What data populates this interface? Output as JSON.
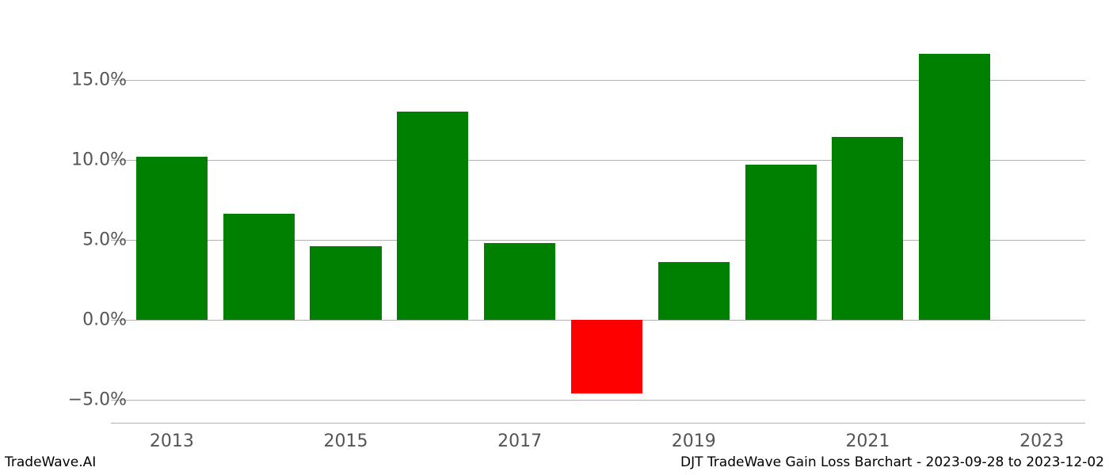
{
  "chart": {
    "type": "bar",
    "years": [
      2013,
      2014,
      2015,
      2016,
      2017,
      2018,
      2019,
      2020,
      2021,
      2022
    ],
    "values": [
      10.2,
      6.6,
      4.6,
      13.0,
      4.8,
      -4.6,
      3.6,
      9.7,
      11.4,
      16.6
    ],
    "bar_colors": [
      "#008000",
      "#008000",
      "#008000",
      "#008000",
      "#008000",
      "#ff0000",
      "#008000",
      "#008000",
      "#008000",
      "#008000"
    ],
    "positive_color": "#008000",
    "negative_color": "#ff0000",
    "background_color": "#ffffff",
    "grid_color": "#b0b0b0",
    "yticks": [
      -5.0,
      0.0,
      5.0,
      10.0,
      15.0
    ],
    "ytick_labels": [
      "−5.0%",
      "0.0%",
      "5.0%",
      "10.0%",
      "15.0%"
    ],
    "xticks": [
      2013,
      2015,
      2017,
      2019,
      2021,
      2023
    ],
    "xtick_labels": [
      "2013",
      "2015",
      "2017",
      "2019",
      "2021",
      "2023"
    ],
    "ylim": [
      -6.5,
      18.0
    ],
    "xlim": [
      2012.3,
      2023.5
    ],
    "bar_width": 0.82,
    "tick_fontsize": 22,
    "tick_color": "#555555",
    "footer_fontsize": 17
  },
  "footer": {
    "left": "TradeWave.AI",
    "right": "DJT TradeWave Gain Loss Barchart - 2023-09-28 to 2023-12-02"
  }
}
